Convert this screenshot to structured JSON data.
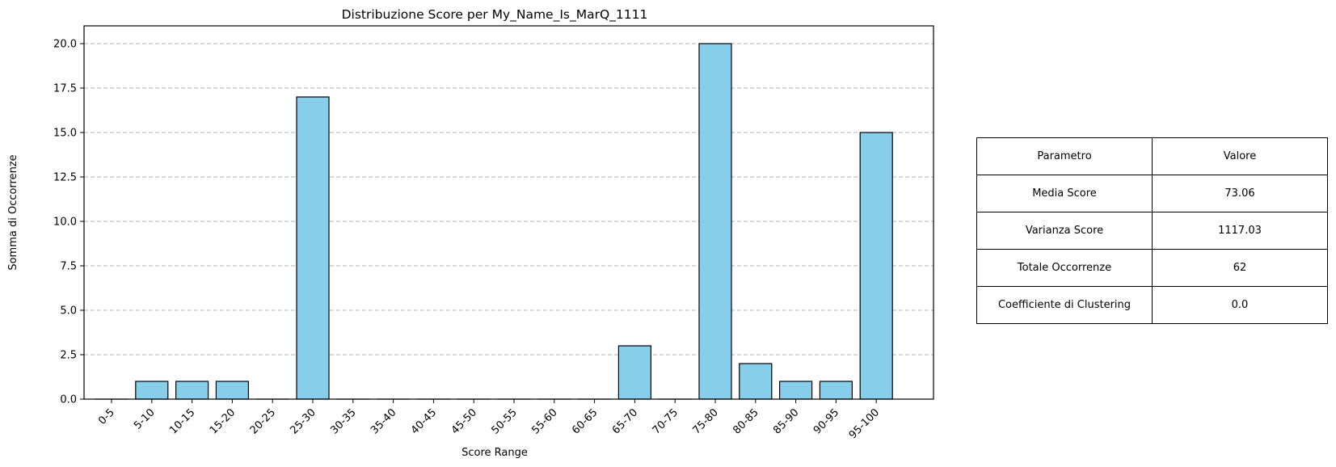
{
  "chart_data": {
    "type": "bar",
    "title": "Distribuzione Score per My_Name_Is_MarQ_1111",
    "xlabel": "Score Range",
    "ylabel": "Somma di Occorrenze",
    "categories": [
      "0-5",
      "5-10",
      "10-15",
      "15-20",
      "20-25",
      "25-30",
      "30-35",
      "35-40",
      "40-45",
      "45-50",
      "50-55",
      "55-60",
      "60-65",
      "65-70",
      "70-75",
      "75-80",
      "80-85",
      "85-90",
      "90-95",
      "95-100"
    ],
    "values": [
      0,
      1,
      1,
      1,
      0,
      17,
      0,
      0,
      0,
      0,
      0,
      0,
      0,
      3,
      0,
      20,
      2,
      1,
      1,
      15
    ],
    "ylim": [
      0,
      21
    ],
    "yticks": [
      "0.0",
      "2.5",
      "5.0",
      "7.5",
      "10.0",
      "12.5",
      "15.0",
      "17.5",
      "20.0"
    ],
    "grid": "y dashed",
    "bar_color": "#87ceeb",
    "edge_color": "#000000"
  },
  "table": {
    "header": {
      "param": "Parametro",
      "value": "Valore"
    },
    "rows": [
      {
        "param": "Media Score",
        "value": "73.06"
      },
      {
        "param": "Varianza Score",
        "value": "1117.03"
      },
      {
        "param": "Totale Occorrenze",
        "value": "62"
      },
      {
        "param": "Coefficiente di Clustering",
        "value": "0.0"
      }
    ]
  }
}
